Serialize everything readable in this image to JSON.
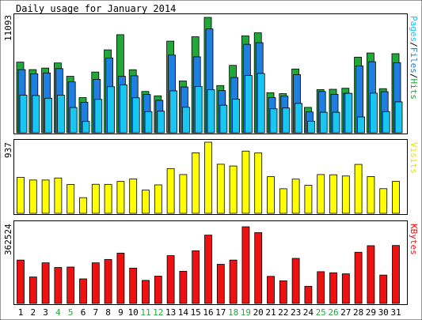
{
  "chart_data": [
    {
      "type": "bar",
      "title": "Daily usage for January 2014",
      "panel": "hits-files-pages",
      "ylabel_max": "11093",
      "legend": [
        "Pages",
        "Files",
        "Hits"
      ],
      "colors": {
        "hits": "#22a83a",
        "files": "#1f7fe0",
        "pages": "#19c6f2"
      },
      "categories": [
        "1",
        "2",
        "3",
        "4",
        "5",
        "6",
        "7",
        "8",
        "9",
        "10",
        "11",
        "12",
        "13",
        "14",
        "15",
        "16",
        "17",
        "18",
        "19",
        "20",
        "21",
        "22",
        "23",
        "24",
        "25",
        "26",
        "27",
        "28",
        "29",
        "30",
        "31"
      ],
      "weekend_color": "#22a83a",
      "weekend_days": [
        "4",
        "5",
        "11",
        "12",
        "18",
        "19",
        "25",
        "26"
      ],
      "ylim": [
        0,
        11093
      ],
      "series": [
        {
          "name": "Hits",
          "values": [
            6790,
            6070,
            6220,
            6710,
            5430,
            3380,
            5840,
            7970,
            9430,
            6060,
            3970,
            3550,
            8810,
            4980,
            9230,
            11093,
            4540,
            6480,
            9320,
            9610,
            3850,
            3760,
            6130,
            2440,
            4150,
            4180,
            4280,
            7270,
            7670,
            4240,
            7600
          ]
        },
        {
          "name": "Files",
          "values": [
            6070,
            5670,
            5750,
            6170,
            4890,
            2920,
            5130,
            7190,
            5430,
            5480,
            3680,
            3120,
            7470,
            4400,
            7300,
            9980,
            4050,
            5310,
            8500,
            8660,
            3380,
            3520,
            5580,
            2000,
            3970,
            3700,
            3790,
            6430,
            6830,
            3950,
            6740
          ]
        },
        {
          "name": "Pages",
          "values": [
            3620,
            3580,
            3320,
            3620,
            2430,
            1090,
            3210,
            4430,
            4610,
            3360,
            2030,
            2070,
            4030,
            2450,
            4450,
            4130,
            2650,
            3220,
            5500,
            5700,
            2300,
            2380,
            2820,
            1110,
            1970,
            1970,
            3790,
            1520,
            3810,
            2030,
            2970
          ]
        }
      ]
    },
    {
      "type": "bar",
      "panel": "visits",
      "ylabel_max": "937",
      "legend": [
        "Visits"
      ],
      "colors": {
        "visits": "#ffff00"
      },
      "categories": [
        "1",
        "2",
        "3",
        "4",
        "5",
        "6",
        "7",
        "8",
        "9",
        "10",
        "11",
        "12",
        "13",
        "14",
        "15",
        "16",
        "17",
        "18",
        "19",
        "20",
        "21",
        "22",
        "23",
        "24",
        "25",
        "26",
        "27",
        "28",
        "29",
        "30",
        "31"
      ],
      "ylim": [
        0,
        937
      ],
      "series": [
        {
          "name": "Visits",
          "values": [
            475,
            439,
            439,
            466,
            380,
            206,
            383,
            382,
            420,
            453,
            306,
            375,
            590,
            511,
            797,
            937,
            647,
            624,
            820,
            795,
            483,
            324,
            451,
            369,
            511,
            508,
            492,
            645,
            485,
            325,
            421
          ]
        }
      ]
    },
    {
      "type": "bar",
      "panel": "kbytes",
      "ylabel_max": "362524",
      "legend": [
        "KBytes"
      ],
      "colors": {
        "kbytes": "#ee1111"
      },
      "categories": [
        "1",
        "2",
        "3",
        "4",
        "5",
        "6",
        "7",
        "8",
        "9",
        "10",
        "11",
        "12",
        "13",
        "14",
        "15",
        "16",
        "17",
        "18",
        "19",
        "20",
        "21",
        "22",
        "23",
        "24",
        "25",
        "26",
        "27",
        "28",
        "29",
        "30",
        "31"
      ],
      "ylim": [
        0,
        362524
      ],
      "series": [
        {
          "name": "KBytes",
          "values": [
            205000,
            125000,
            192000,
            170000,
            172000,
            116000,
            192000,
            208000,
            238000,
            167000,
            109000,
            129000,
            226000,
            152000,
            249000,
            323000,
            185000,
            205000,
            362524,
            335000,
            128000,
            107000,
            213000,
            81000,
            150000,
            145000,
            140000,
            242000,
            273000,
            134000,
            274000
          ]
        }
      ]
    }
  ]
}
